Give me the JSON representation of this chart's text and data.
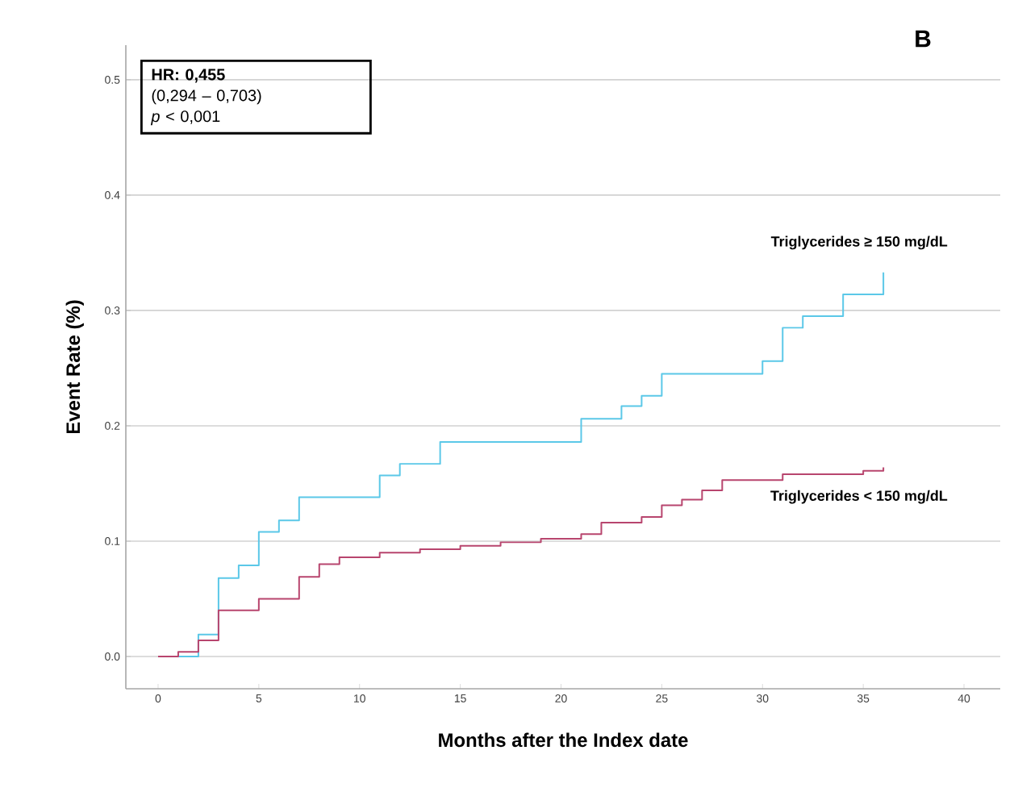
{
  "chart_data": {
    "type": "step",
    "title": "B",
    "xlabel": "Months after the Index date",
    "ylabel": "Event Rate (%)",
    "annotations": [
      "**HR: 0,455**",
      "(0,294 – 0,703)",
      "*p* < 0,001"
    ],
    "xlim": [
      -1.6,
      41.8
    ],
    "ylim": [
      -0.028,
      0.53
    ],
    "xticks": [
      0,
      5,
      10,
      15,
      20,
      25,
      30,
      35,
      40
    ],
    "yticks": [
      {
        "value": 0,
        "label": "0.0"
      },
      {
        "value": 0.1,
        "label": "0.1"
      },
      {
        "value": 0.2,
        "label": "0.2"
      },
      {
        "value": 0.3,
        "label": "0.3"
      },
      {
        "value": 0.4,
        "label": "0.4"
      },
      {
        "value": 0.5,
        "label": "0.5"
      }
    ],
    "grid": "y",
    "series": [
      {
        "name": "Triglycerides ≥ 150 mg/dL",
        "color": "#5bc8e8",
        "x": [
          0,
          2,
          3,
          4,
          5,
          6,
          7,
          11,
          12,
          14,
          21,
          23,
          24,
          25,
          30,
          31,
          32,
          34,
          36
        ],
        "values": [
          0,
          0.019,
          0.068,
          0.079,
          0.108,
          0.118,
          0.138,
          0.157,
          0.167,
          0.186,
          0.206,
          0.217,
          0.226,
          0.245,
          0.256,
          0.285,
          0.295,
          0.314,
          0.333
        ]
      },
      {
        "name": "Triglycerides < 150 mg/dL",
        "color": "#b8456e",
        "x": [
          0,
          1,
          2,
          3,
          5,
          7,
          8,
          9,
          11,
          13,
          15,
          17,
          19,
          21,
          22,
          24,
          25,
          26,
          27,
          28,
          31,
          35,
          36
        ],
        "values": [
          0,
          0.004,
          0.014,
          0.04,
          0.05,
          0.069,
          0.08,
          0.086,
          0.09,
          0.093,
          0.096,
          0.099,
          0.102,
          0.106,
          0.116,
          0.121,
          0.131,
          0.136,
          0.144,
          0.153,
          0.158,
          0.161,
          0.164
        ]
      }
    ]
  }
}
